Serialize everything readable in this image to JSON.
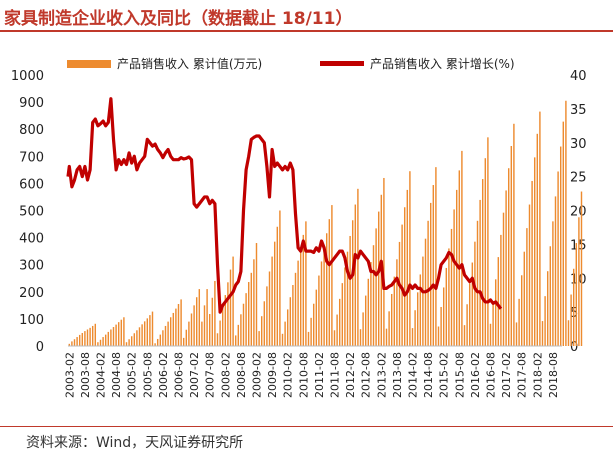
{
  "title": "家具制造企业收入及同比（数据截止 18/11）",
  "source": "资料来源：Wind，天风证券研究所",
  "colors": {
    "bar": "#ED8B2F",
    "line": "#C00000",
    "accent": "#C0392B"
  },
  "chart_data": {
    "type": "bar",
    "legend": {
      "position": "top",
      "bar_label": "产品销售收入 累计值(万元)",
      "line_label": "产品销售收入 累计增长(%)"
    },
    "left_axis": {
      "min": 0,
      "max": 1000,
      "step": 100,
      "ticks": [
        "0",
        "100",
        "200",
        "300",
        "400",
        "500",
        "600",
        "700",
        "800",
        "900",
        "1000"
      ]
    },
    "right_axis": {
      "min": 0,
      "max": 40,
      "step": 5,
      "ticks": [
        "0",
        "5",
        "10",
        "15",
        "20",
        "25",
        "30",
        "35",
        "40"
      ]
    },
    "x_tick_labels": [
      "2003-02",
      "2003-08",
      "2004-02",
      "2004-08",
      "2005-02",
      "2005-08",
      "2006-02",
      "2006-08",
      "2007-02",
      "2007-08",
      "2008-02",
      "2008-08",
      "2009-02",
      "2009-08",
      "2010-02",
      "2010-08",
      "2011-02",
      "2011-08",
      "2012-02",
      "2012-08",
      "2013-02",
      "2013-08",
      "2014-02",
      "2014-08",
      "2015-02",
      "2015-08",
      "2016-02",
      "2016-08",
      "2017-02",
      "2017-08",
      "2018-02",
      "2018-08"
    ],
    "series": [
      {
        "name": "产品销售收入 累计值(万元)",
        "type": "bar",
        "axis": "left",
        "start": "2003-02",
        "values": [
          8,
          17,
          25,
          33,
          41,
          48,
          55,
          61,
          67,
          74,
          82,
          14,
          23,
          33,
          42,
          52,
          61,
          70,
          79,
          88,
          97,
          106,
          14,
          25,
          36,
          47,
          58,
          69,
          80,
          91,
          102,
          114,
          127,
          10,
          26,
          42,
          58,
          74,
          90,
          106,
          122,
          138,
          155,
          172,
          30,
          60,
          90,
          120,
          150,
          180,
          210,
          90,
          150,
          210,
          118,
          178,
          240,
          47,
          94,
          141,
          188,
          235,
          282,
          330,
          39,
          78,
          117,
          156,
          195,
          236,
          270,
          320,
          380,
          55,
          110,
          165,
          220,
          275,
          330,
          385,
          440,
          500,
          45,
          90,
          135,
          180,
          225,
          270,
          315,
          360,
          410,
          460,
          52,
          104,
          156,
          208,
          260,
          312,
          364,
          416,
          468,
          520,
          58,
          116,
          174,
          232,
          290,
          348,
          406,
          464,
          522,
          580,
          62,
          124,
          186,
          248,
          310,
          372,
          434,
          496,
          558,
          620,
          64,
          128,
          192,
          256,
          320,
          384,
          448,
          512,
          576,
          645,
          66,
          132,
          198,
          264,
          330,
          396,
          462,
          528,
          594,
          660,
          72,
          144,
          216,
          288,
          360,
          432,
          504,
          576,
          648,
          720,
          77,
          154,
          231,
          308,
          385,
          462,
          539,
          616,
          693,
          770,
          82,
          164,
          246,
          328,
          410,
          492,
          574,
          656,
          738,
          820,
          87,
          174,
          261,
          348,
          435,
          522,
          609,
          696,
          783,
          865,
          92,
          184,
          276,
          368,
          460,
          552,
          644,
          736,
          828,
          905,
          95,
          190,
          285,
          380,
          475,
          570
        ]
      },
      {
        "name": "产品销售收入 累计增长(%)",
        "type": "line",
        "axis": "right",
        "start": "2003-01",
        "values": [
          25.0,
          26.5,
          23.5,
          24.5,
          26.0,
          26.5,
          25.0,
          26.5,
          24.5,
          26.0,
          33.0,
          33.5,
          32.5,
          32.8,
          33.2,
          32.5,
          33.0,
          36.5,
          30.5,
          26.0,
          27.5,
          26.8,
          27.5,
          26.8,
          28.5,
          27.0,
          28.0,
          26.0,
          27.0,
          27.5,
          28.0,
          30.5,
          30.0,
          29.5,
          29.8,
          29.0,
          28.5,
          27.8,
          28.5,
          29.0,
          28.0,
          27.5,
          27.5,
          27.5,
          27.8,
          27.6,
          27.7,
          27.9,
          27.5,
          21.0,
          20.5,
          21.0,
          21.5,
          22.0,
          22.0,
          21.0,
          21.5,
          21.0,
          12.0,
          5.0,
          6.0,
          6.5,
          7.0,
          7.5,
          8.0,
          9.0,
          9.5,
          11.0,
          20.0,
          26.0,
          28.0,
          30.5,
          30.8,
          31.0,
          31.0,
          30.5,
          30.0,
          26.5,
          22.0,
          29.0,
          26.5,
          27.0,
          26.5,
          26.0,
          26.5,
          26.0,
          27.0,
          26.0,
          19.5,
          14.5,
          14.0,
          15.5,
          14.0,
          14.0,
          14.0,
          13.8,
          14.5,
          14.0,
          15.5,
          14.5,
          12.5,
          12.0,
          12.5,
          13.0,
          13.5,
          14.0,
          14.0,
          13.0,
          11.0,
          10.0,
          10.5,
          13.5,
          13.0,
          14.0,
          13.5,
          13.0,
          12.5,
          11.0,
          11.0,
          10.5,
          11.0,
          12.5,
          8.5,
          8.5,
          8.8,
          9.0,
          9.5,
          10.0,
          9.0,
          8.5,
          7.5,
          8.0,
          9.0,
          8.5,
          9.0,
          8.5,
          8.5,
          8.0,
          8.0,
          8.2,
          8.5,
          9.0,
          8.5,
          10.0,
          12.0,
          12.5,
          13.0,
          13.8,
          13.5,
          12.5,
          12.0,
          11.5,
          12.0,
          10.5,
          10.0,
          9.5,
          10.0,
          8.5,
          8.0,
          8.0,
          7.0,
          6.5,
          6.5,
          6.8,
          6.3,
          6.5,
          6.0,
          5.5
        ]
      }
    ]
  }
}
